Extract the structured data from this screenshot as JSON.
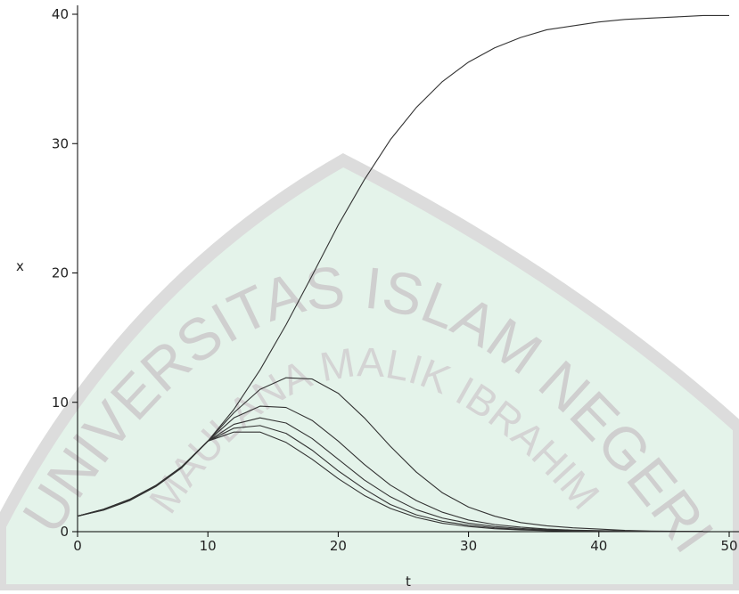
{
  "chart_data": {
    "type": "line",
    "x_label": "x",
    "t_label": "t",
    "watermark": {
      "line1": "UNIVERSITAS ISLAM NEGERI",
      "line2": "MAULANA MALIK IBRAHIM"
    },
    "x": [
      0,
      2,
      4,
      6,
      8,
      10,
      12,
      14,
      16,
      18,
      20,
      22,
      24,
      26,
      28,
      30,
      32,
      34,
      36,
      38,
      40,
      42,
      44,
      46,
      48,
      50
    ],
    "series": [
      {
        "color": "#333333",
        "values": [
          1.2,
          1.74,
          2.5,
          3.57,
          5.03,
          7.0,
          9.46,
          12.5,
          16.0,
          19.8,
          23.7,
          27.2,
          30.3,
          32.8,
          34.8,
          36.3,
          37.4,
          38.2,
          38.8,
          39.1,
          39.4,
          39.6,
          39.7,
          39.8,
          39.9,
          39.9
        ]
      },
      {
        "color": "#333333",
        "values": [
          1.2,
          1.74,
          2.5,
          3.57,
          5.03,
          7.0,
          9.2,
          11.0,
          11.9,
          11.8,
          10.7,
          8.8,
          6.6,
          4.6,
          3.0,
          1.9,
          1.2,
          0.7,
          0.45,
          0.3,
          0.2,
          0.1,
          0.05,
          0.03,
          0.02,
          null
        ]
      },
      {
        "color": "#333333",
        "values": [
          1.2,
          1.72,
          2.48,
          3.55,
          5.0,
          7.0,
          8.8,
          9.7,
          9.6,
          8.6,
          7.0,
          5.2,
          3.6,
          2.4,
          1.5,
          0.9,
          0.55,
          0.35,
          0.2,
          0.12,
          0.08,
          0.05,
          0.03,
          0.02,
          0.01,
          null
        ]
      },
      {
        "color": "#333333",
        "values": [
          1.2,
          1.7,
          2.45,
          3.52,
          4.98,
          7.0,
          8.3,
          8.8,
          8.4,
          7.2,
          5.6,
          4.0,
          2.7,
          1.7,
          1.05,
          0.65,
          0.4,
          0.25,
          0.15,
          0.09,
          0.05,
          0.03,
          0.02,
          0.01,
          0.01,
          null
        ]
      },
      {
        "color": "#333333",
        "values": [
          1.2,
          1.68,
          2.42,
          3.5,
          4.96,
          7.0,
          8.0,
          8.2,
          7.6,
          6.3,
          4.7,
          3.3,
          2.1,
          1.3,
          0.8,
          0.5,
          0.3,
          0.18,
          0.1,
          0.06,
          0.04,
          0.02,
          0.01,
          0.01,
          0.0,
          null
        ]
      },
      {
        "color": "#333333",
        "values": [
          1.2,
          1.66,
          2.4,
          3.48,
          4.94,
          7.0,
          7.7,
          7.7,
          6.9,
          5.6,
          4.1,
          2.8,
          1.8,
          1.1,
          0.65,
          0.4,
          0.23,
          0.13,
          0.08,
          0.05,
          0.03,
          0.02,
          0.01,
          0.0,
          0.0,
          null
        ]
      }
    ],
    "xlim": [
      0,
      50
    ],
    "ylim": [
      0,
      40
    ],
    "xticks": [
      0,
      10,
      20,
      30,
      40,
      50
    ],
    "yticks": [
      0,
      10,
      20,
      30,
      40
    ]
  }
}
